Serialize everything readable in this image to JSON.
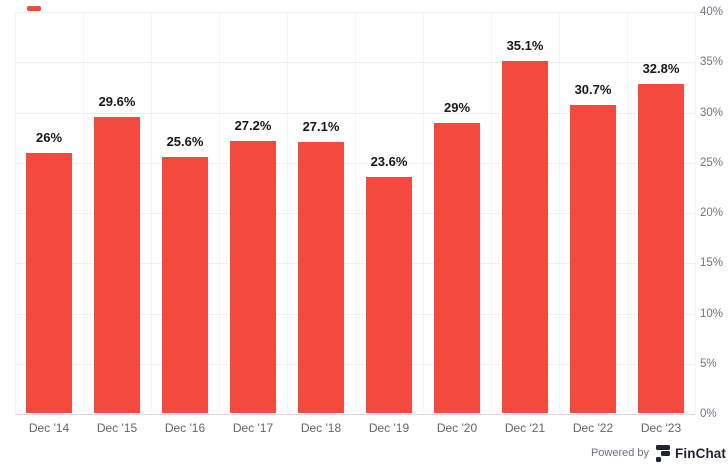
{
  "chart_data": {
    "type": "bar",
    "title": "",
    "categories": [
      "Dec '14",
      "Dec '15",
      "Dec '16",
      "Dec '17",
      "Dec '18",
      "Dec '19",
      "Dec '20",
      "Dec '21",
      "Dec '22",
      "Dec '23"
    ],
    "values": [
      26,
      29.6,
      25.6,
      27.2,
      27.1,
      23.6,
      29,
      35.1,
      30.7,
      32.8
    ],
    "data_labels": [
      "26%",
      "29.6%",
      "25.6%",
      "27.2%",
      "27.1%",
      "23.6%",
      "29%",
      "35.1%",
      "30.7%",
      "32.8%"
    ],
    "xlabel": "",
    "ylabel": "",
    "ylim": [
      0,
      40
    ],
    "y_tick_step": 5,
    "y_tick_labels": [
      "0%",
      "5%",
      "10%",
      "15%",
      "20%",
      "25%",
      "30%",
      "35%",
      "40%"
    ],
    "y_axis_side": "right",
    "grid": true,
    "legend_position": "top-left",
    "bar_color": "#F4493D"
  },
  "footer": {
    "powered_by": "Powered by",
    "brand": "FinChat"
  },
  "colors": {
    "accent": "#F4493D",
    "brand_navy": "#1d2433",
    "axis_label_gray": "#65656e"
  }
}
